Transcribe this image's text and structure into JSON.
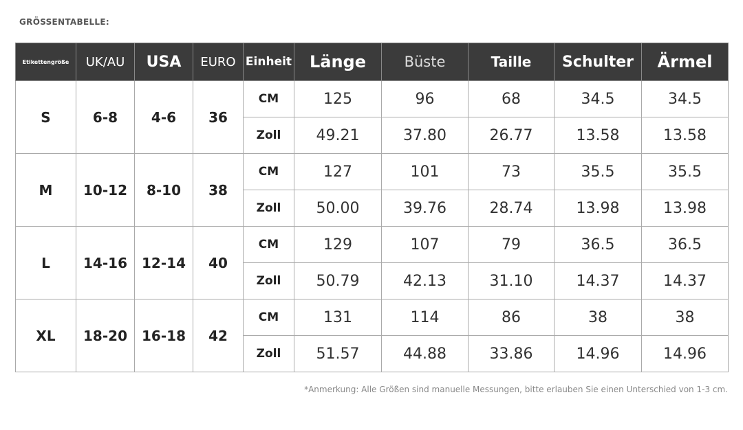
{
  "header": {
    "title": "GRÖSSENTABELLE:"
  },
  "table": {
    "columns": [
      "Etikettengröße",
      "UK/AU",
      "USA",
      "EURO",
      "Einheit",
      "Länge",
      "Büste",
      "Taille",
      "Schulter",
      "Ärmel"
    ],
    "groups": [
      {
        "size": "S",
        "uk_au": "6-8",
        "usa": "4-6",
        "euro": "36",
        "rows": [
          {
            "unit": "CM",
            "values": [
              "125",
              "96",
              "68",
              "34.5",
              "34.5"
            ]
          },
          {
            "unit": "Zoll",
            "values": [
              "49.21",
              "37.80",
              "26.77",
              "13.58",
              "13.58"
            ]
          }
        ]
      },
      {
        "size": "M",
        "uk_au": "10-12",
        "usa": "8-10",
        "euro": "38",
        "rows": [
          {
            "unit": "CM",
            "values": [
              "127",
              "101",
              "73",
              "35.5",
              "35.5"
            ]
          },
          {
            "unit": "Zoll",
            "values": [
              "50.00",
              "39.76",
              "28.74",
              "13.98",
              "13.98"
            ]
          }
        ]
      },
      {
        "size": "L",
        "uk_au": "14-16",
        "usa": "12-14",
        "euro": "40",
        "rows": [
          {
            "unit": "CM",
            "values": [
              "129",
              "107",
              "79",
              "36.5",
              "36.5"
            ]
          },
          {
            "unit": "Zoll",
            "values": [
              "50.79",
              "42.13",
              "31.10",
              "14.37",
              "14.37"
            ]
          }
        ]
      },
      {
        "size": "XL",
        "uk_au": "18-20",
        "usa": "16-18",
        "euro": "42",
        "rows": [
          {
            "unit": "CM",
            "values": [
              "131",
              "114",
              "86",
              "38",
              "38"
            ]
          },
          {
            "unit": "Zoll",
            "values": [
              "51.57",
              "44.88",
              "33.86",
              "14.96",
              "14.96"
            ]
          }
        ]
      }
    ]
  },
  "note": "*Anmerkung: Alle Größen sind manuelle Messungen, bitte erlauben Sie einen Unterschied von 1-3 cm."
}
